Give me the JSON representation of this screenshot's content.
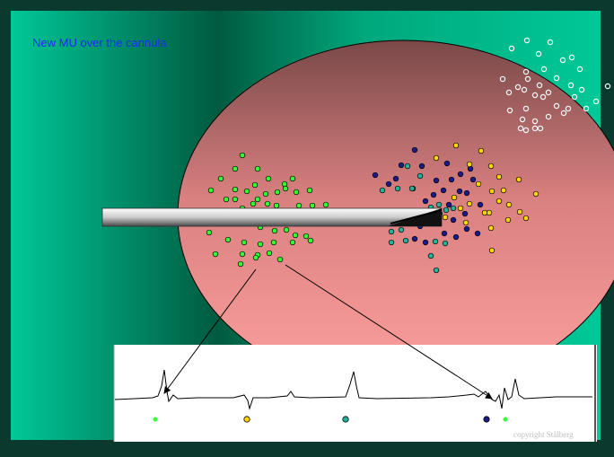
{
  "slide": {
    "title": "New MU over the cannula",
    "copyright": "copyright Stålberg"
  },
  "motor_units": [
    {
      "name": "green",
      "color": "#33ff33"
    },
    {
      "name": "yellow",
      "color": "#ffd500"
    },
    {
      "name": "navy",
      "color": "#1a1a8c"
    },
    {
      "name": "teal",
      "color": "#1fb59a"
    },
    {
      "name": "white",
      "color": "#ffffff"
    }
  ],
  "colors": {
    "background_dark": "#0a3a2e",
    "background_light": "#00c898",
    "muscle_top": "#7a4848",
    "muscle_bottom": "#ff9f9f",
    "title_text": "#1d2cf0",
    "trace": "#000000",
    "trace_panel": "#ffffff"
  },
  "trace_markers": [
    "green",
    "yellow",
    "teal",
    "navy",
    "green"
  ],
  "icons": {
    "cannula": "cannula-needle-icon",
    "arrow": "arrow-icon"
  }
}
